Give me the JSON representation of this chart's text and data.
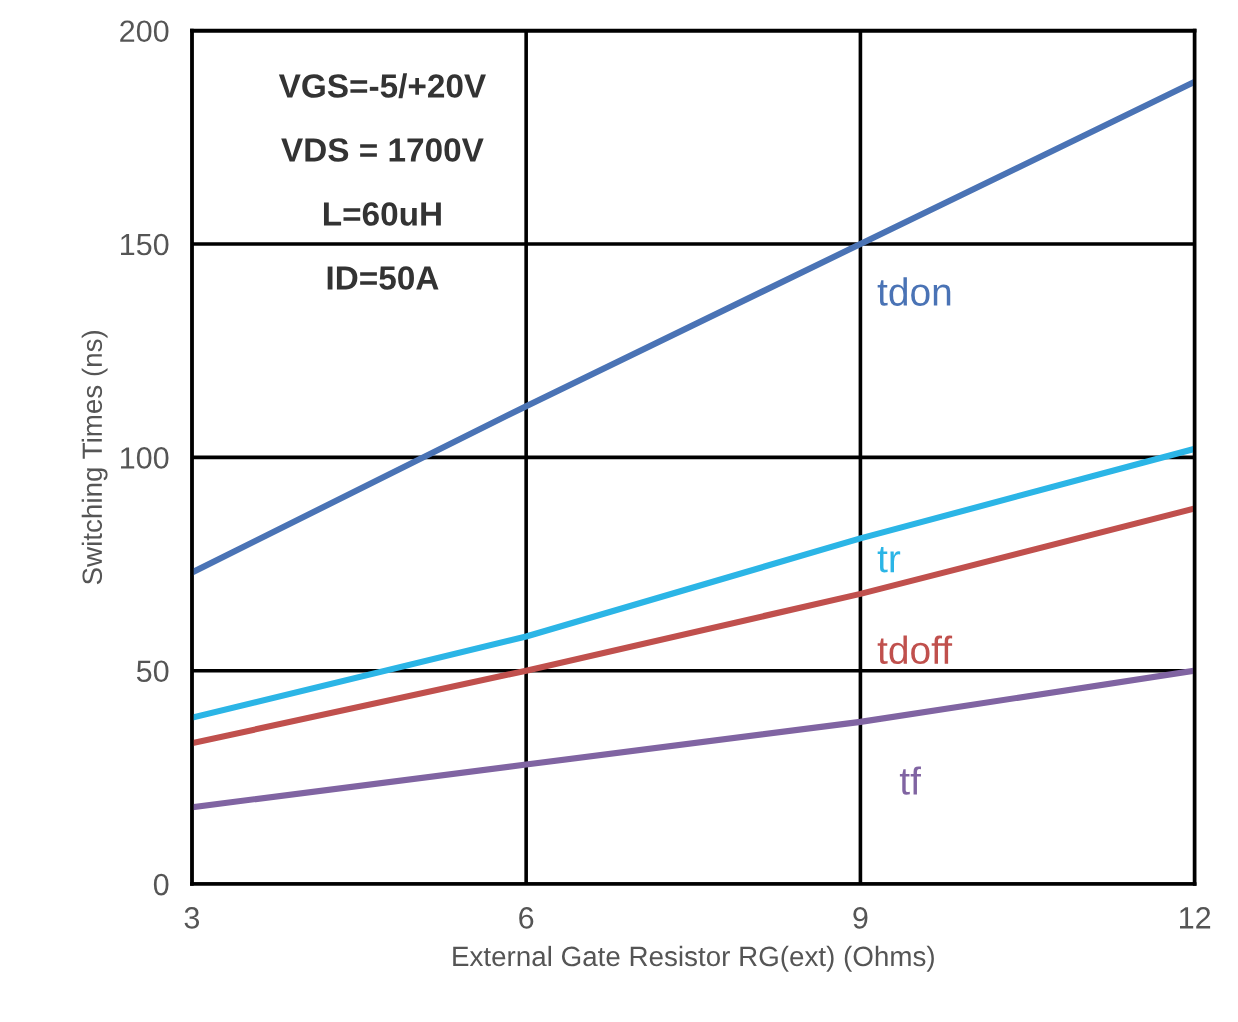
{
  "chart_data": {
    "type": "line",
    "xlabel": "External Gate Resistor RG(ext) (Ohms)",
    "ylabel": "Switching Times (ns)",
    "x": [
      3,
      6,
      9,
      12
    ],
    "series": [
      {
        "name": "tdon",
        "color": "#4a73b5",
        "values": [
          73,
          112,
          150,
          188
        ]
      },
      {
        "name": "tr",
        "color": "#2bb5e6",
        "values": [
          39,
          58,
          81,
          102
        ]
      },
      {
        "name": "tdoff",
        "color": "#c0504d",
        "values": [
          33,
          50,
          68,
          88
        ]
      },
      {
        "name": "tf",
        "color": "#8064a2",
        "values": [
          18,
          28,
          38,
          50
        ]
      }
    ],
    "xlim": [
      3,
      12
    ],
    "xticks": [
      3,
      6,
      9,
      12
    ],
    "ylim": [
      0,
      200
    ],
    "yticks": [
      0,
      50,
      100,
      150,
      200
    ],
    "grid": true,
    "legend": false,
    "marker": "none",
    "line_style": "solid",
    "annotations": [
      "VGS=-5/+20V",
      "VDS = 1700V",
      "L=60uH",
      "ID=50A"
    ]
  }
}
